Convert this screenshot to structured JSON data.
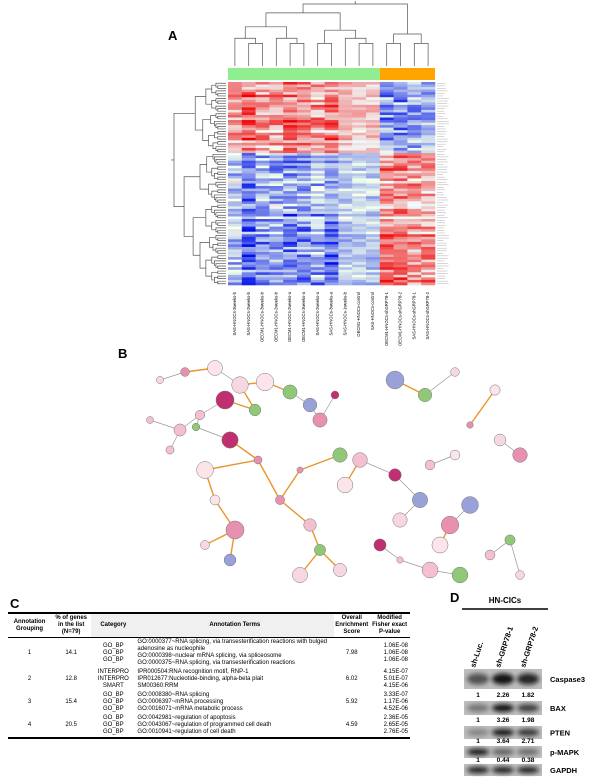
{
  "panels": {
    "a": "A",
    "b": "B",
    "c": "C",
    "d": "D"
  },
  "heatmap": {
    "columns": [
      "SAS-HNOCs-3weeks-b",
      "SAS-HNOCs-2weeks-b",
      "OECM1-HNOCs-3weeks-b",
      "OECM1-HNOCs-2weeks-b",
      "OECM1-HNOCs-2weeks-a",
      "OECM1-HNOCs-3weeks-a",
      "SAS-HNOCs-2weeks-a",
      "SAS-HNOCs-3weeks-a",
      "SAS-HNOCs-1weeks-b",
      "OECM1-HNOCs-control",
      "SAS-HNOCs-control",
      "OECM1-HNOCs-shGRP78-1",
      "OECM1-HNOCs-shGRP78-2",
      "SAS-HNOCs-shGRP78-1",
      "SAS-HNOCs-shGRP78-2"
    ]
  },
  "table": {
    "headers": [
      "Annotation Grouping",
      "% of genes in the list (N=79)",
      "Category",
      "Annotation Terms",
      "Overall Enrichment Score",
      "Modified Fisher exact P-value"
    ],
    "groups": [
      {
        "grouping": "1",
        "percent": "14.1",
        "categories": [
          "GO_BP",
          "GO_BP",
          "GO_BP"
        ],
        "terms": [
          "GO:0000377~RNA splicing, via transesterification reactions with bulged adenosine as nucleophile",
          "GO:0000398~nuclear mRNA splicing, via spliceosome",
          "GO:0000375~RNA splicing, via transesterification reactions"
        ],
        "score": "7.98",
        "pvalues": [
          "1.06E-08",
          "1.06E-08",
          "1.06E-08"
        ]
      },
      {
        "grouping": "2",
        "percent": "12.8",
        "categories": [
          "INTERPRO",
          "INTERPRO",
          "SMART"
        ],
        "terms": [
          "IPR000504:RNA recognition motif, RNP-1",
          "IPR012677:Nucleotide-binding, alpha-beta plait",
          "SM00360:RRM"
        ],
        "score": "6.02",
        "pvalues": [
          "4.15E-07",
          "5.01E-07",
          "4.15E-06"
        ]
      },
      {
        "grouping": "3",
        "percent": "15.4",
        "categories": [
          "GO_BP",
          "GO_BP",
          "GO_BP"
        ],
        "terms": [
          "GO:0008380~RNA splicing",
          "GO:0006397~mRNA processing",
          "GO:0016071~mRNA metabolic process"
        ],
        "score": "5.92",
        "pvalues": [
          "3.33E-07",
          "1.17E-06",
          "4.52E-06"
        ]
      },
      {
        "grouping": "4",
        "percent": "20.5",
        "categories": [
          "GO_BP",
          "GO_BP",
          "GO_BP"
        ],
        "terms": [
          "GO:0042981~regulation of apoptosis",
          "GO:0043067~regulation of programmed cell death",
          "GO:0010941~regulation of cell death"
        ],
        "score": "4.59",
        "pvalues": [
          "2.36E-05",
          "2.65E-05",
          "2.76E-05"
        ]
      }
    ]
  },
  "blot": {
    "title": "HN-CICs",
    "lanes": [
      "sh-Luc.",
      "sh-GRP78-1",
      "sh-GRP78-2"
    ],
    "proteins": [
      {
        "name": "Caspase3",
        "values": [
          "1",
          "2.26",
          "1.82"
        ]
      },
      {
        "name": "BAX",
        "values": [
          "1",
          "3.26",
          "1.98"
        ]
      },
      {
        "name": "PTEN",
        "values": [
          "1",
          "3.64",
          "2.71"
        ]
      },
      {
        "name": "p-MAPK",
        "values": [
          "1",
          "0.44",
          "0.38"
        ]
      },
      {
        "name": "GAPDH"
      }
    ]
  }
}
